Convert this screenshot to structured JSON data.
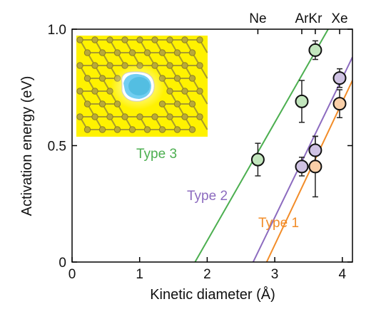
{
  "chart_data": {
    "type": "scatter",
    "xlabel": "Kinetic diameter (Å)",
    "ylabel": "Activation energy (eV)",
    "xlim": [
      0,
      4.15
    ],
    "ylim": [
      0,
      1.0
    ],
    "x_scale": "reciprocal",
    "x_ticks": [
      {
        "value": 0,
        "label": "0"
      },
      {
        "value": 1,
        "label": "1"
      },
      {
        "value": 2,
        "label": "2"
      },
      {
        "value": 3,
        "label": "3"
      },
      {
        "value": 4,
        "label": "4"
      }
    ],
    "y_ticks": [
      {
        "value": 0,
        "label": "0"
      },
      {
        "value": 0.5,
        "label": "0.5"
      },
      {
        "value": 1.0,
        "label": "1.0"
      }
    ],
    "top_axis": [
      {
        "label": "Ne",
        "x": 2.75
      },
      {
        "label": "Ar",
        "x": 3.4
      },
      {
        "label": "Kr",
        "x": 3.6
      },
      {
        "label": "Xe",
        "x": 3.96
      }
    ],
    "series": [
      {
        "name": "Type 3",
        "color": "#4caf50",
        "marker_fill": "#c2e6bd",
        "points": [
          {
            "x": 2.75,
            "y": 0.44,
            "err": 0.07
          },
          {
            "x": 3.4,
            "y": 0.69,
            "err": 0.09
          },
          {
            "x": 3.6,
            "y": 0.91,
            "err": 0.04
          }
        ],
        "fit_line": [
          {
            "x": 1.82,
            "y": 0.0
          },
          {
            "x": 3.79,
            "y": 1.0
          }
        ]
      },
      {
        "name": "Type 2",
        "color": "#8c6bbf",
        "marker_fill": "#cfc2e3",
        "points": [
          {
            "x": 3.4,
            "y": 0.41,
            "err": 0.04
          },
          {
            "x": 3.6,
            "y": 0.48,
            "err": 0.06
          },
          {
            "x": 3.96,
            "y": 0.79,
            "err": 0.04
          }
        ],
        "fit_line": [
          {
            "x": 2.68,
            "y": 0.0
          },
          {
            "x": 4.15,
            "y": 0.88
          }
        ]
      },
      {
        "name": "Type 1",
        "color": "#f28c28",
        "marker_fill": "#f9cfa8",
        "points": [
          {
            "x": 3.6,
            "y": 0.41,
            "err": 0.13
          },
          {
            "x": 3.96,
            "y": 0.68,
            "err": 0.06
          }
        ],
        "fit_line": [
          {
            "x": 2.88,
            "y": 0.0
          },
          {
            "x": 4.15,
            "y": 0.78
          }
        ]
      }
    ]
  }
}
